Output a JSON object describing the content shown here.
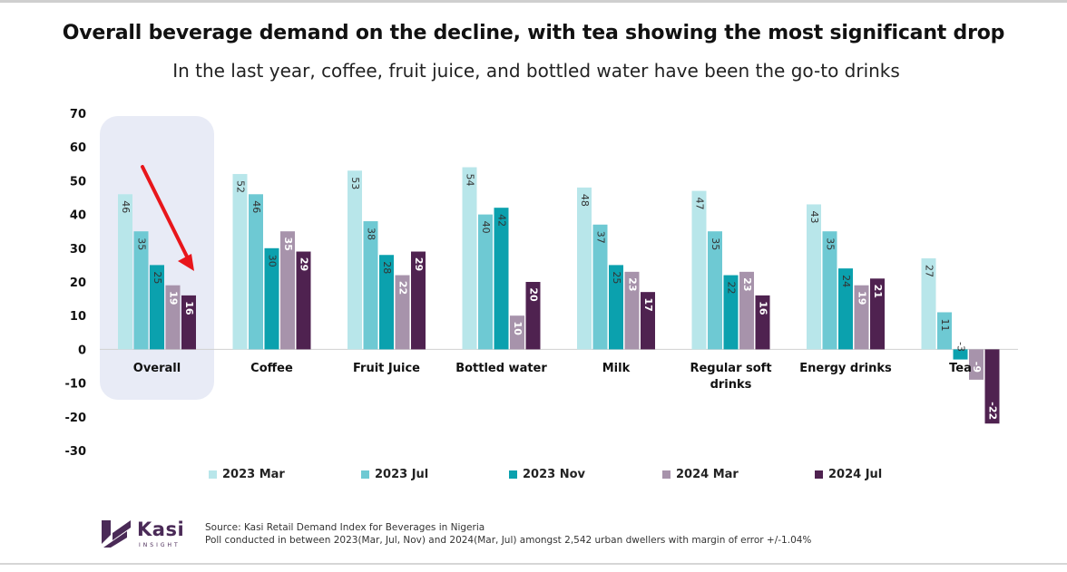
{
  "header": {
    "title": "Overall beverage demand on the decline, with tea showing the most significant drop",
    "subtitle": "In the last year, coffee, fruit juice, and bottled water have been the go-to drinks"
  },
  "chart_data": {
    "type": "bar",
    "categories": [
      "Overall",
      "Coffee",
      "Fruit Juice",
      "Bottled water",
      "Milk",
      "Regular soft drinks",
      "Energy drinks",
      "Tea"
    ],
    "series": [
      {
        "name": "2023 Mar",
        "color": "#b8e6ea",
        "label_color": "#333333",
        "values": [
          46,
          52,
          53,
          54,
          48,
          47,
          43,
          27
        ]
      },
      {
        "name": "2023 Jul",
        "color": "#6ec9d3",
        "label_color": "#333333",
        "values": [
          35,
          46,
          38,
          40,
          37,
          35,
          35,
          11
        ]
      },
      {
        "name": "2023 Nov",
        "color": "#0ba1ae",
        "label_color": "#333333",
        "values": [
          25,
          30,
          28,
          42,
          25,
          22,
          24,
          -3
        ]
      },
      {
        "name": "2024 Mar",
        "color": "#a793ab",
        "label_color": "#ffffff",
        "values": [
          19,
          35,
          22,
          10,
          23,
          23,
          19,
          -9
        ]
      },
      {
        "name": "2024 Jul",
        "color": "#4f2250",
        "label_color": "#ffffff",
        "values": [
          16,
          29,
          29,
          20,
          17,
          16,
          21,
          -22
        ]
      }
    ],
    "ylim": [
      -30,
      70
    ],
    "yticks": [
      70,
      60,
      50,
      40,
      30,
      20,
      10,
      0,
      -10,
      -20,
      -30
    ],
    "highlight_category": "Overall",
    "annotation": "red-downward-arrow",
    "legend_position": "bottom"
  },
  "footer": {
    "logo_word": "Kasi",
    "logo_sub": "INSIGHT",
    "source_line1": "Source: Kasi Retail Demand Index for Beverages in Nigeria",
    "source_line2": "Poll conducted  in between 2023(Mar, Jul, Nov) and 2024(Mar, Jul) amongst 2,542  urban dwellers with margin of error +/-1.04%"
  },
  "colors": {
    "highlight_bg": "#e8ebf6",
    "arrow": "#e8161b",
    "logo": "#4a2a57"
  }
}
